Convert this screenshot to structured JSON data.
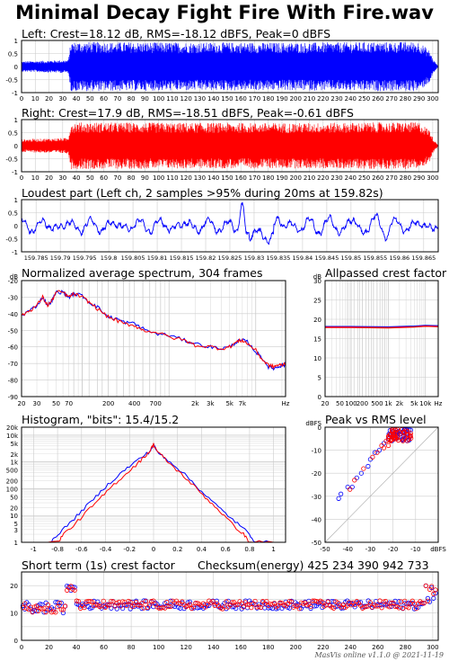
{
  "title": "Minimal Decay Fight Fire With Fire.wav",
  "footer": "MasVis online v1.1.0 @ 2021-11-19",
  "colors": {
    "left": "#0000ff",
    "right": "#ff0000",
    "mid": "#800080",
    "grid": "#cccccc",
    "frame": "#000000"
  },
  "panels": {
    "left": {
      "title": "Left: Crest=18.12 dB, RMS=-18.12 dBFS, Peak=0 dBFS"
    },
    "right": {
      "title": "Right: Crest=17.9 dB, RMS=-18.51 dBFS, Peak=-0.61 dBFS"
    },
    "loudest": {
      "title": "Loudest part (Left ch, 2 samples >95% during 20ms at 159.82s)"
    },
    "spectrum": {
      "title": "Normalized average spectrum, 304 frames"
    },
    "allpass": {
      "title": "Allpassed crest factor"
    },
    "histogram": {
      "title": "Histogram, \"bits\": 15.4/15.2"
    },
    "peakrms": {
      "title": "Peak vs RMS level"
    },
    "shortcrest": {
      "title": "Short term (1s) crest factor"
    },
    "checksum": {
      "title": "Checksum(energy)  425 234 390 942 733"
    }
  },
  "chart_data": [
    {
      "type": "line",
      "id": "waveform-left",
      "title": "Left: Crest=18.12 dB, RMS=-18.12 dBFS, Peak=0 dBFS",
      "xlim": [
        0,
        304
      ],
      "ylim": [
        -1,
        1
      ],
      "xticks": [
        "0",
        "10",
        "20",
        "30",
        "40",
        "50",
        "60",
        "70",
        "80",
        "90",
        "100",
        "110",
        "120",
        "130",
        "140",
        "150",
        "160",
        "170",
        "180",
        "190",
        "200",
        "210",
        "220",
        "230",
        "240",
        "250",
        "260",
        "270",
        "280",
        "290",
        "300"
      ],
      "yticks": [
        "1",
        "0.5",
        "0",
        "-0.5",
        "-1"
      ],
      "envelope": [
        [
          0,
          0.2
        ],
        [
          34,
          0.25
        ],
        [
          36,
          0.95
        ],
        [
          100,
          0.93
        ],
        [
          200,
          0.92
        ],
        [
          290,
          0.95
        ],
        [
          298,
          0.6
        ],
        [
          300,
          0.3
        ],
        [
          304,
          0.02
        ]
      ],
      "series": [
        {
          "color": "#0000ff"
        }
      ]
    },
    {
      "type": "line",
      "id": "waveform-right",
      "title": "Right: Crest=17.9 dB, RMS=-18.51 dBFS, Peak=-0.61 dBFS",
      "xlim": [
        0,
        304
      ],
      "ylim": [
        -1,
        1
      ],
      "xticks": [
        "0",
        "10",
        "20",
        "30",
        "40",
        "50",
        "60",
        "70",
        "80",
        "90",
        "100",
        "110",
        "120",
        "130",
        "140",
        "150",
        "160",
        "170",
        "180",
        "190",
        "200",
        "210",
        "220",
        "230",
        "240",
        "250",
        "260",
        "270",
        "280",
        "290",
        "300"
      ],
      "yticks": [
        "1",
        "0.5",
        "0",
        "-0.5",
        "-1"
      ],
      "envelope": [
        [
          0,
          0.25
        ],
        [
          34,
          0.3
        ],
        [
          36,
          0.9
        ],
        [
          100,
          0.88
        ],
        [
          200,
          0.87
        ],
        [
          290,
          0.9
        ],
        [
          298,
          0.6
        ],
        [
          300,
          0.3
        ],
        [
          304,
          0.02
        ]
      ],
      "series": [
        {
          "color": "#ff0000"
        }
      ]
    },
    {
      "type": "line",
      "id": "loudest-part",
      "title": "Loudest part (Left ch, 2 samples >95% during 20ms at 159.82s)",
      "xlim": [
        159.782,
        159.868
      ],
      "ylim": [
        -1,
        1
      ],
      "xticks": [
        "159.785",
        "159.79",
        "159.795",
        "159.8",
        "159.805",
        "159.81",
        "159.815",
        "159.82",
        "159.825",
        "159.83",
        "159.835",
        "159.84",
        "159.845",
        "159.85",
        "159.855",
        "159.86",
        "159.865"
      ],
      "yticks": [
        "1",
        "0.5",
        "0",
        "-0.5",
        "-1"
      ],
      "series": [
        {
          "color": "#0000ff"
        }
      ]
    },
    {
      "type": "line",
      "id": "spectrum",
      "title": "Normalized average spectrum, 304 frames",
      "ylabel": "dB",
      "xlabel": "Hz",
      "xscale": "log",
      "xlim": [
        20,
        22050
      ],
      "ylim": [
        -90,
        -20
      ],
      "xticks": [
        "20",
        "30",
        "50",
        "70",
        "200",
        "400",
        "700",
        "2k",
        "3k",
        "5k",
        "7k"
      ],
      "yticks": [
        "-20",
        "-30",
        "-40",
        "-50",
        "-60",
        "-70",
        "-80",
        "-90"
      ],
      "series": [
        {
          "color": "#0000ff",
          "points": [
            [
              20,
              -41
            ],
            [
              25,
              -38
            ],
            [
              30,
              -35
            ],
            [
              35,
              -30
            ],
            [
              40,
              -35
            ],
            [
              45,
              -32
            ],
            [
              50,
              -27
            ],
            [
              60,
              -27
            ],
            [
              70,
              -30
            ],
            [
              80,
              -28
            ],
            [
              100,
              -29
            ],
            [
              120,
              -33
            ],
            [
              150,
              -36
            ],
            [
              200,
              -42
            ],
            [
              250,
              -43
            ],
            [
              300,
              -45
            ],
            [
              400,
              -46
            ],
            [
              500,
              -49
            ],
            [
              700,
              -52
            ],
            [
              1000,
              -53
            ],
            [
              1500,
              -56
            ],
            [
              2000,
              -58
            ],
            [
              3000,
              -60
            ],
            [
              4000,
              -61
            ],
            [
              5000,
              -60
            ],
            [
              6000,
              -57
            ],
            [
              7000,
              -56
            ],
            [
              8000,
              -57
            ],
            [
              10000,
              -63
            ],
            [
              12000,
              -67
            ],
            [
              14000,
              -72
            ],
            [
              16000,
              -73
            ],
            [
              18000,
              -72
            ],
            [
              20000,
              -71
            ],
            [
              22050,
              -71
            ]
          ]
        },
        {
          "color": "#ff0000",
          "points": [
            [
              20,
              -41
            ],
            [
              25,
              -38
            ],
            [
              30,
              -35
            ],
            [
              35,
              -30
            ],
            [
              40,
              -35
            ],
            [
              45,
              -32
            ],
            [
              50,
              -27
            ],
            [
              60,
              -27
            ],
            [
              70,
              -30
            ],
            [
              80,
              -28
            ],
            [
              100,
              -30
            ],
            [
              120,
              -33
            ],
            [
              150,
              -37
            ],
            [
              200,
              -42
            ],
            [
              250,
              -44
            ],
            [
              300,
              -46
            ],
            [
              400,
              -47
            ],
            [
              500,
              -50
            ],
            [
              700,
              -51
            ],
            [
              1000,
              -54
            ],
            [
              1500,
              -56
            ],
            [
              2000,
              -59
            ],
            [
              3000,
              -60
            ],
            [
              4000,
              -61
            ],
            [
              5000,
              -60
            ],
            [
              6000,
              -57
            ],
            [
              7000,
              -56
            ],
            [
              8000,
              -58
            ],
            [
              10000,
              -62
            ],
            [
              12000,
              -68
            ],
            [
              14000,
              -71
            ],
            [
              16000,
              -72
            ],
            [
              18000,
              -71
            ],
            [
              20000,
              -71
            ],
            [
              22050,
              -70
            ]
          ]
        }
      ]
    },
    {
      "type": "line",
      "id": "allpass-crest",
      "title": "Allpassed crest factor",
      "ylabel": "dB",
      "xlabel": "Hz",
      "xscale": "log",
      "xlim": [
        20,
        22050
      ],
      "ylim": [
        0,
        30
      ],
      "xticks": [
        "20",
        "50",
        "100",
        "200",
        "500",
        "1k",
        "2k",
        "5k",
        "10k"
      ],
      "yticks": [
        "30",
        "25",
        "20",
        "15",
        "10",
        "5",
        "0"
      ],
      "series": [
        {
          "color": "#0000ff",
          "points": [
            [
              20,
              18.1
            ],
            [
              100,
              18.1
            ],
            [
              1000,
              18.0
            ],
            [
              5000,
              18.2
            ],
            [
              10000,
              18.4
            ],
            [
              22050,
              18.3
            ]
          ]
        },
        {
          "color": "#ff0000",
          "points": [
            [
              20,
              17.9
            ],
            [
              100,
              17.9
            ],
            [
              1000,
              17.8
            ],
            [
              5000,
              18.0
            ],
            [
              10000,
              18.2
            ],
            [
              22050,
              18.1
            ]
          ]
        }
      ]
    },
    {
      "type": "line",
      "id": "histogram",
      "title": "Histogram, \"bits\": 15.4/15.2",
      "xlim": [
        -1.1,
        1.1
      ],
      "ylim": [
        1,
        20000
      ],
      "yscale": "log",
      "xticks": [
        "-1",
        "-0.8",
        "-0.6",
        "-0.4",
        "-0.2",
        "0",
        "0.2",
        "0.4",
        "0.6",
        "0.8",
        "1"
      ],
      "yticks": [
        "20k",
        "10k",
        "5k",
        "2k",
        "1k",
        "500",
        "200",
        "100",
        "50",
        "20",
        "10",
        "5",
        "3",
        "1"
      ],
      "series": [
        {
          "color": "#0000ff",
          "points": [
            [
              -1.0,
              1
            ],
            [
              -0.85,
              1
            ],
            [
              -0.8,
              2
            ],
            [
              -0.7,
              5
            ],
            [
              -0.6,
              15
            ],
            [
              -0.5,
              40
            ],
            [
              -0.4,
              120
            ],
            [
              -0.3,
              300
            ],
            [
              -0.2,
              700
            ],
            [
              -0.1,
              1500
            ],
            [
              -0.03,
              2500
            ],
            [
              0,
              4500
            ],
            [
              0.03,
              2400
            ],
            [
              0.1,
              1400
            ],
            [
              0.2,
              600
            ],
            [
              0.3,
              230
            ],
            [
              0.4,
              80
            ],
            [
              0.5,
              30
            ],
            [
              0.6,
              12
            ],
            [
              0.7,
              5
            ],
            [
              0.8,
              2
            ],
            [
              0.85,
              1
            ],
            [
              1.0,
              1
            ]
          ]
        },
        {
          "color": "#ff0000",
          "points": [
            [
              -1.0,
              1
            ],
            [
              -0.8,
              1
            ],
            [
              -0.75,
              2
            ],
            [
              -0.65,
              5
            ],
            [
              -0.55,
              15
            ],
            [
              -0.45,
              40
            ],
            [
              -0.35,
              120
            ],
            [
              -0.25,
              300
            ],
            [
              -0.15,
              750
            ],
            [
              -0.08,
              1500
            ],
            [
              -0.03,
              2600
            ],
            [
              0,
              4600
            ],
            [
              0.03,
              2600
            ],
            [
              0.08,
              1500
            ],
            [
              0.15,
              750
            ],
            [
              0.25,
              300
            ],
            [
              0.35,
              110
            ],
            [
              0.45,
              40
            ],
            [
              0.55,
              15
            ],
            [
              0.65,
              5
            ],
            [
              0.75,
              2
            ],
            [
              0.8,
              1
            ],
            [
              1.0,
              1
            ]
          ]
        }
      ]
    },
    {
      "type": "scatter",
      "id": "peak-vs-rms",
      "title": "Peak vs RMS level",
      "ylabel": "dBFS",
      "xlabel": "dBFS",
      "xlim": [
        -50,
        0
      ],
      "ylim": [
        -50,
        0
      ],
      "xticks": [
        "-50",
        "-40",
        "-30",
        "-20",
        "-10"
      ],
      "yticks": [
        "0",
        "-10",
        "-20",
        "-30",
        "-40",
        "-50"
      ],
      "series": [
        {
          "color": "#0000ff",
          "points": [
            [
              -44,
              -31
            ],
            [
              -43,
              -29
            ],
            [
              -40,
              -26
            ],
            [
              -38,
              -26
            ],
            [
              -36,
              -22
            ],
            [
              -34,
              -20
            ],
            [
              -31,
              -17
            ],
            [
              -30,
              -14
            ],
            [
              -28,
              -11
            ],
            [
              -26,
              -10
            ],
            [
              -24,
              -7
            ],
            [
              -22,
              -5
            ],
            [
              -21,
              -3
            ],
            [
              -20,
              -2
            ],
            [
              -19,
              -1
            ],
            [
              -18,
              -2
            ],
            [
              -17,
              -2
            ],
            [
              -16,
              -1
            ],
            [
              -15,
              -1
            ],
            [
              -14,
              -1
            ],
            [
              -18,
              -3
            ],
            [
              -20,
              -4
            ]
          ]
        },
        {
          "color": "#ff0000",
          "points": [
            [
              -39,
              -27
            ],
            [
              -37,
              -23
            ],
            [
              -33,
              -18
            ],
            [
              -29,
              -13
            ],
            [
              -27,
              -11
            ],
            [
              -25,
              -8
            ],
            [
              -23,
              -6
            ],
            [
              -22,
              -4
            ],
            [
              -21,
              -3
            ],
            [
              -20,
              -2
            ],
            [
              -19,
              -1
            ],
            [
              -18,
              -1
            ],
            [
              -17,
              -2
            ],
            [
              -16,
              -1
            ],
            [
              -15,
              -2
            ],
            [
              -21,
              -6
            ],
            [
              -24,
              -9
            ],
            [
              -22,
              -8
            ],
            [
              -19,
              -5
            ]
          ]
        }
      ]
    },
    {
      "type": "scatter",
      "id": "short-term-crest",
      "title": "Short term (1s) crest factor",
      "xlim": [
        0,
        304
      ],
      "ylim": [
        0,
        25
      ],
      "xticks": [
        "0",
        "20",
        "40",
        "60",
        "80",
        "100",
        "120",
        "140",
        "160",
        "180",
        "200",
        "220",
        "240",
        "260",
        "280",
        "300"
      ],
      "yticks": [
        "20",
        "10",
        "0"
      ],
      "series": [
        {
          "color": "#0000ff",
          "mean": 13
        },
        {
          "color": "#ff0000",
          "mean": 13
        }
      ]
    }
  ]
}
